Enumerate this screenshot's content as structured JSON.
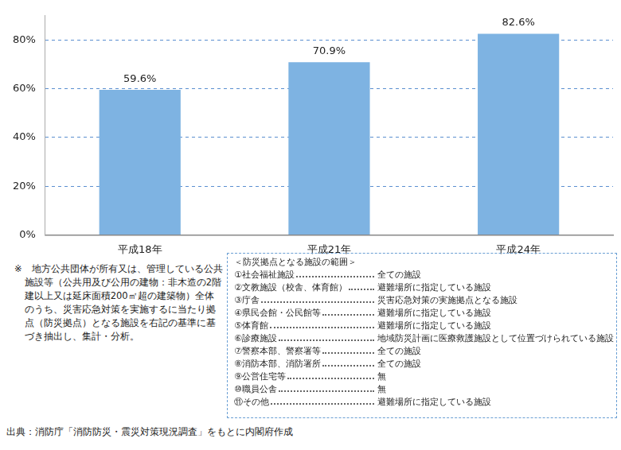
{
  "chart_data": {
    "type": "bar",
    "categories": [
      "平成18年",
      "平成21年",
      "平成24年"
    ],
    "values": [
      59.6,
      70.9,
      82.6
    ],
    "value_labels": [
      "59.6%",
      "70.9%",
      "82.6%"
    ],
    "color": "#7eb3e2",
    "ylim": [
      0,
      90
    ],
    "yticks": [
      {
        "value": 0,
        "label": "0%"
      },
      {
        "value": 20,
        "label": "20%"
      },
      {
        "value": 40,
        "label": "40%"
      },
      {
        "value": 60,
        "label": "60%"
      },
      {
        "value": 80,
        "label": "80%"
      }
    ],
    "grid": true,
    "data_labels": true
  },
  "note": "※　地方公共団体が所有又は、管理している公共施設等（公共用及び公用の建物：非木造の2階建以上又は延床面積200㎡超の建築物）全体のうち、災害応急対策を実施するに当たり拠点（防災拠点）となる施設を右記の基準に基づき抽出し、集計・分析。",
  "facility_scope": {
    "title": "＜防災拠点となる施設の範囲＞",
    "items": [
      {
        "label": "①社会福祉施設",
        "criterion": "全ての施設"
      },
      {
        "label": "②文教施設（校舎、体育館）",
        "criterion": "避難場所に指定している施設"
      },
      {
        "label": "③庁舎",
        "criterion": "災害応急対策の実施拠点となる施設"
      },
      {
        "label": "④県民会館・公民館等",
        "criterion": "避難場所に指定している施設"
      },
      {
        "label": "⑤体育館",
        "criterion": "避難場所に指定している施設"
      },
      {
        "label": "⑥診療施設",
        "criterion": "地域防災計画に医療救護施設として位置づけられている施設"
      },
      {
        "label": "⑦警察本部、警察署等",
        "criterion": "全ての施設"
      },
      {
        "label": "⑧消防本部、消防署所",
        "criterion": "全ての施設"
      },
      {
        "label": "⑨公営住宅等",
        "criterion": "無"
      },
      {
        "label": "⑩職員公舎",
        "criterion": "無"
      },
      {
        "label": "⑪その他",
        "criterion": "避難場所に指定している施設"
      }
    ]
  },
  "source": "出典：消防庁「消防防災・震災対策現況調査」をもとに内閣府作成"
}
